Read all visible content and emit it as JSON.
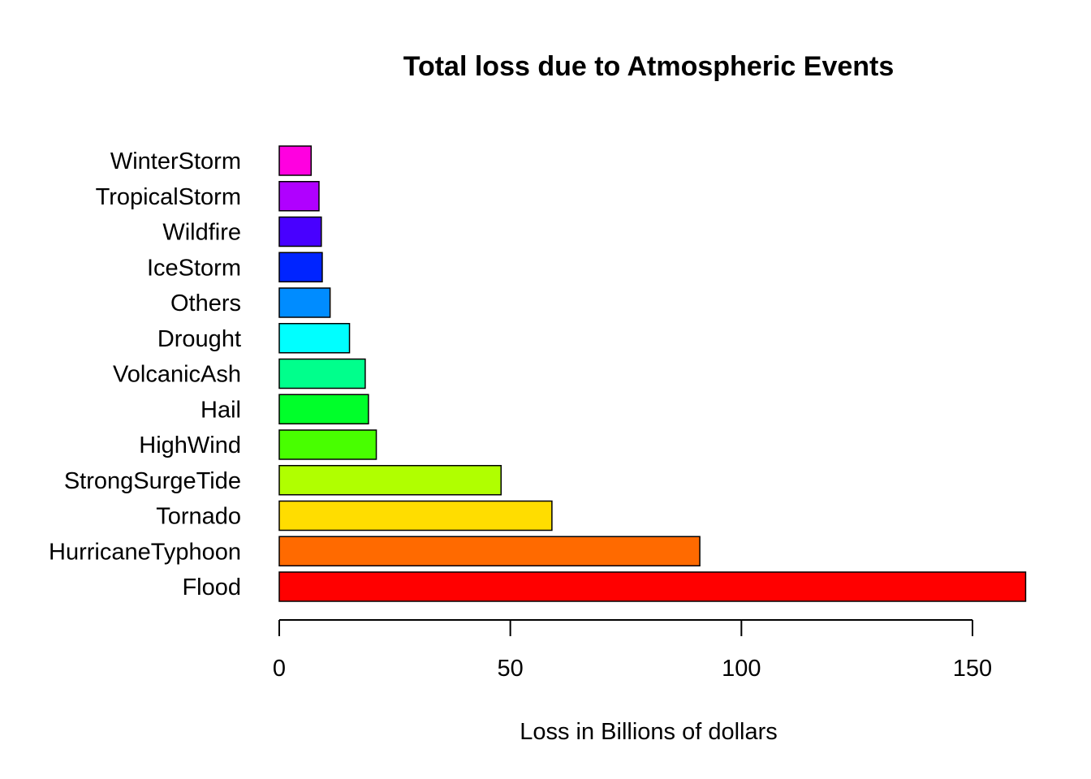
{
  "chart_data": {
    "type": "bar",
    "orientation": "horizontal",
    "title": "Total loss due to Atmospheric Events",
    "xlabel": "Loss in Billions of dollars",
    "ylabel": "",
    "xlim": [
      0,
      150
    ],
    "x_ticks": [
      0,
      50,
      100,
      150
    ],
    "grid": false,
    "legend": "none",
    "categories": [
      "Flood",
      "HurricaneTyphoon",
      "Tornado",
      "StrongSurgeTide",
      "HighWind",
      "Hail",
      "VolcanicAsh",
      "Drought",
      "Others",
      "IceStorm",
      "Wildfire",
      "TropicalStorm",
      "WinterStorm"
    ],
    "values": [
      161.5,
      91,
      59,
      48,
      21,
      19.3,
      18.6,
      15.2,
      11,
      9.3,
      9.1,
      8.6,
      6.9
    ],
    "colors": [
      "#FF0000",
      "#FF6A00",
      "#FFDD00",
      "#B0FF00",
      "#48FF00",
      "#00FF2A",
      "#00FF8C",
      "#00FFFF",
      "#008CFF",
      "#0024FF",
      "#4800FF",
      "#B000FF",
      "#FF00E0"
    ]
  }
}
